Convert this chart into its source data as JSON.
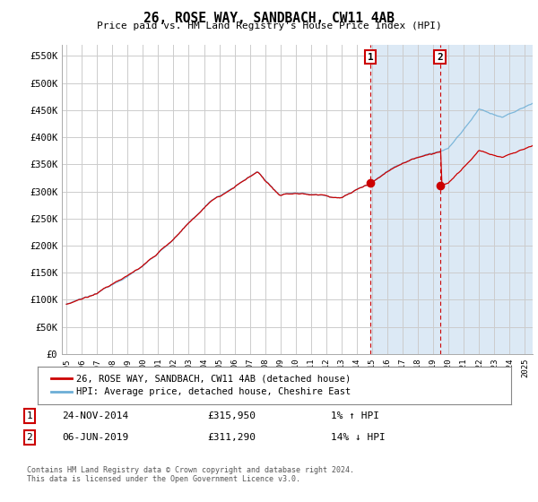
{
  "title": "26, ROSE WAY, SANDBACH, CW11 4AB",
  "subtitle": "Price paid vs. HM Land Registry's House Price Index (HPI)",
  "background_color": "#ffffff",
  "plot_bg_color": "#ffffff",
  "grid_color": "#cccccc",
  "hpi_band_color": "#dce9f5",
  "ylabel_ticks": [
    "£0",
    "£50K",
    "£100K",
    "£150K",
    "£200K",
    "£250K",
    "£300K",
    "£350K",
    "£400K",
    "£450K",
    "£500K",
    "£550K"
  ],
  "ytick_values": [
    0,
    50000,
    100000,
    150000,
    200000,
    250000,
    300000,
    350000,
    400000,
    450000,
    500000,
    550000
  ],
  "ylim": [
    0,
    570000
  ],
  "xlim_start": 1994.7,
  "xlim_end": 2025.5,
  "xtick_labels": [
    "1995",
    "1996",
    "1997",
    "1998",
    "1999",
    "2000",
    "2001",
    "2002",
    "2003",
    "2004",
    "2005",
    "2006",
    "2007",
    "2008",
    "2009",
    "2010",
    "2011",
    "2012",
    "2013",
    "2014",
    "2015",
    "2016",
    "2017",
    "2018",
    "2019",
    "2020",
    "2021",
    "2022",
    "2023",
    "2024",
    "2025"
  ],
  "marker1_x": 2014.9,
  "marker1_y": 315950,
  "marker2_x": 2019.43,
  "marker2_y": 311290,
  "marker1_label": "1",
  "marker2_label": "2",
  "marker_box_color": "#ffffff",
  "marker_box_edge": "#cc0000",
  "sale_line_color": "#cc0000",
  "hpi_line_color": "#6baed6",
  "legend_sale_label": "26, ROSE WAY, SANDBACH, CW11 4AB (detached house)",
  "legend_hpi_label": "HPI: Average price, detached house, Cheshire East",
  "table_row1": [
    "1",
    "24-NOV-2014",
    "£315,950",
    "1% ↑ HPI"
  ],
  "table_row2": [
    "2",
    "06-JUN-2019",
    "£311,290",
    "14% ↓ HPI"
  ],
  "footnote": "Contains HM Land Registry data © Crown copyright and database right 2024.\nThis data is licensed under the Open Government Licence v3.0.",
  "shaded_region_x1": 2014.9,
  "shaded_region_x2": 2025.5
}
